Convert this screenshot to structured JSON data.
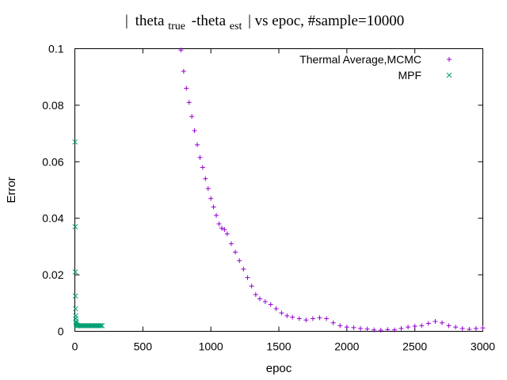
{
  "chart_data": {
    "type": "scatter",
    "title": {
      "bar": "|",
      "theta": "theta",
      "true_sub": "true",
      "minus_theta": "-theta",
      "est_sub": "est",
      "rest": "| vs epoc, #sample=10000"
    },
    "xlabel": "epoc",
    "ylabel": "Error",
    "xlim": [
      0,
      3000
    ],
    "ylim": [
      0,
      0.1
    ],
    "xticks": [
      "0",
      "500",
      "1000",
      "1500",
      "2000",
      "2500",
      "3000"
    ],
    "yticks": [
      "0",
      "0.02",
      "0.04",
      "0.06",
      "0.08",
      "0.1"
    ],
    "grid": false,
    "legend_position": "top-right",
    "series": [
      {
        "name": "Thermal Average,MCMC",
        "marker": "+",
        "color": "#9400d3",
        "points": [
          [
            780,
            0.0995
          ],
          [
            800,
            0.092
          ],
          [
            820,
            0.086
          ],
          [
            840,
            0.081
          ],
          [
            860,
            0.076
          ],
          [
            880,
            0.071
          ],
          [
            900,
            0.066
          ],
          [
            920,
            0.0615
          ],
          [
            940,
            0.058
          ],
          [
            960,
            0.054
          ],
          [
            980,
            0.0505
          ],
          [
            1000,
            0.047
          ],
          [
            1020,
            0.044
          ],
          [
            1040,
            0.041
          ],
          [
            1060,
            0.038
          ],
          [
            1080,
            0.0365
          ],
          [
            1100,
            0.036
          ],
          [
            1120,
            0.0345
          ],
          [
            1150,
            0.031
          ],
          [
            1180,
            0.028
          ],
          [
            1210,
            0.025
          ],
          [
            1240,
            0.022
          ],
          [
            1270,
            0.019
          ],
          [
            1300,
            0.016
          ],
          [
            1330,
            0.013
          ],
          [
            1360,
            0.0115
          ],
          [
            1400,
            0.0105
          ],
          [
            1440,
            0.0095
          ],
          [
            1480,
            0.008
          ],
          [
            1520,
            0.0065
          ],
          [
            1560,
            0.0055
          ],
          [
            1600,
            0.005
          ],
          [
            1650,
            0.0045
          ],
          [
            1700,
            0.004
          ],
          [
            1750,
            0.0045
          ],
          [
            1800,
            0.0048
          ],
          [
            1850,
            0.0045
          ],
          [
            1900,
            0.003
          ],
          [
            1950,
            0.002
          ],
          [
            2000,
            0.0015
          ],
          [
            2050,
            0.0013
          ],
          [
            2100,
            0.001
          ],
          [
            2150,
            0.0008
          ],
          [
            2200,
            0.0005
          ],
          [
            2250,
            0.0004
          ],
          [
            2300,
            0.0006
          ],
          [
            2350,
            0.0005
          ],
          [
            2400,
            0.001
          ],
          [
            2450,
            0.0015
          ],
          [
            2500,
            0.0018
          ],
          [
            2550,
            0.002
          ],
          [
            2600,
            0.0028
          ],
          [
            2650,
            0.0035
          ],
          [
            2700,
            0.003
          ],
          [
            2750,
            0.002
          ],
          [
            2800,
            0.0015
          ],
          [
            2850,
            0.001
          ],
          [
            2900,
            0.0007
          ],
          [
            2950,
            0.001
          ],
          [
            3000,
            0.0012
          ]
        ]
      },
      {
        "name": "MPF",
        "marker": "x",
        "color": "#009e73",
        "points": [
          [
            1,
            0.067
          ],
          [
            2,
            0.037
          ],
          [
            3,
            0.021
          ],
          [
            4,
            0.0125
          ],
          [
            5,
            0.008
          ],
          [
            6,
            0.0055
          ],
          [
            7,
            0.0045
          ],
          [
            8,
            0.0035
          ],
          [
            9,
            0.003
          ],
          [
            10,
            0.0025
          ],
          [
            12,
            0.0022
          ],
          [
            15,
            0.002
          ],
          [
            20,
            0.002
          ],
          [
            30,
            0.002
          ],
          [
            40,
            0.002
          ],
          [
            50,
            0.002
          ],
          [
            60,
            0.002
          ],
          [
            70,
            0.002
          ],
          [
            80,
            0.002
          ],
          [
            90,
            0.002
          ],
          [
            100,
            0.002
          ],
          [
            110,
            0.002
          ],
          [
            120,
            0.002
          ],
          [
            130,
            0.002
          ],
          [
            140,
            0.002
          ],
          [
            150,
            0.002
          ],
          [
            160,
            0.002
          ],
          [
            170,
            0.002
          ],
          [
            180,
            0.002
          ],
          [
            190,
            0.002
          ],
          [
            200,
            0.002
          ]
        ]
      }
    ]
  }
}
